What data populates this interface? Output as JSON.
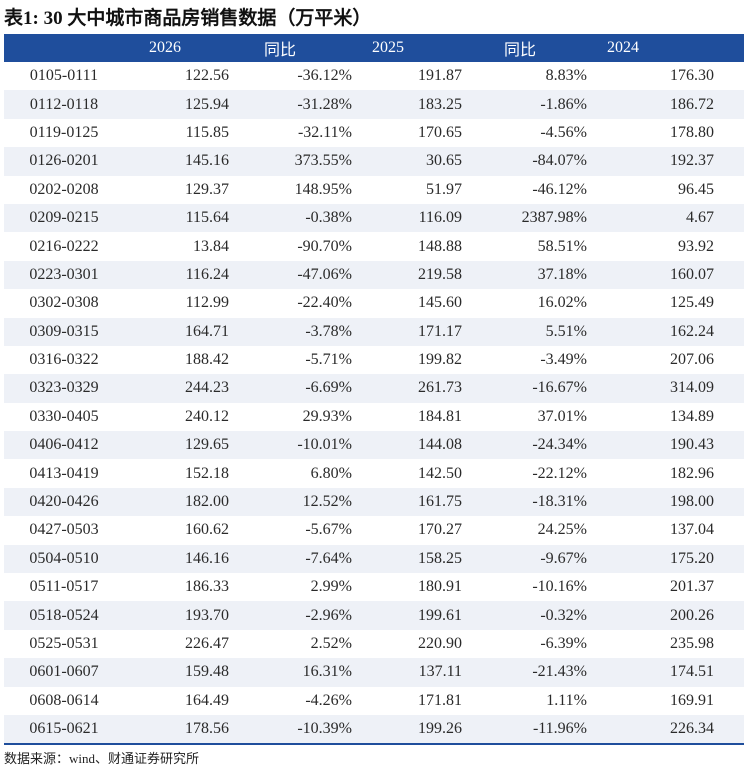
{
  "title": "表1: 30 大中城市商品房销售数据（万平米）",
  "columns": [
    "",
    "2026",
    "同比",
    "2025",
    "同比",
    "2024"
  ],
  "rows": [
    [
      "0105-0111",
      "122.56",
      "-36.12%",
      "191.87",
      "8.83%",
      "176.30"
    ],
    [
      "0112-0118",
      "125.94",
      "-31.28%",
      "183.25",
      "-1.86%",
      "186.72"
    ],
    [
      "0119-0125",
      "115.85",
      "-32.11%",
      "170.65",
      "-4.56%",
      "178.80"
    ],
    [
      "0126-0201",
      "145.16",
      "373.55%",
      "30.65",
      "-84.07%",
      "192.37"
    ],
    [
      "0202-0208",
      "129.37",
      "148.95%",
      "51.97",
      "-46.12%",
      "96.45"
    ],
    [
      "0209-0215",
      "115.64",
      "-0.38%",
      "116.09",
      "2387.98%",
      "4.67"
    ],
    [
      "0216-0222",
      "13.84",
      "-90.70%",
      "148.88",
      "58.51%",
      "93.92"
    ],
    [
      "0223-0301",
      "116.24",
      "-47.06%",
      "219.58",
      "37.18%",
      "160.07"
    ],
    [
      "0302-0308",
      "112.99",
      "-22.40%",
      "145.60",
      "16.02%",
      "125.49"
    ],
    [
      "0309-0315",
      "164.71",
      "-3.78%",
      "171.17",
      "5.51%",
      "162.24"
    ],
    [
      "0316-0322",
      "188.42",
      "-5.71%",
      "199.82",
      "-3.49%",
      "207.06"
    ],
    [
      "0323-0329",
      "244.23",
      "-6.69%",
      "261.73",
      "-16.67%",
      "314.09"
    ],
    [
      "0330-0405",
      "240.12",
      "29.93%",
      "184.81",
      "37.01%",
      "134.89"
    ],
    [
      "0406-0412",
      "129.65",
      "-10.01%",
      "144.08",
      "-24.34%",
      "190.43"
    ],
    [
      "0413-0419",
      "152.18",
      "6.80%",
      "142.50",
      "-22.12%",
      "182.96"
    ],
    [
      "0420-0426",
      "182.00",
      "12.52%",
      "161.75",
      "-18.31%",
      "198.00"
    ],
    [
      "0427-0503",
      "160.62",
      "-5.67%",
      "170.27",
      "24.25%",
      "137.04"
    ],
    [
      "0504-0510",
      "146.16",
      "-7.64%",
      "158.25",
      "-9.67%",
      "175.20"
    ],
    [
      "0511-0517",
      "186.33",
      "2.99%",
      "180.91",
      "-10.16%",
      "201.37"
    ],
    [
      "0518-0524",
      "193.70",
      "-2.96%",
      "199.61",
      "-0.32%",
      "200.26"
    ],
    [
      "0525-0531",
      "226.47",
      "2.52%",
      "220.90",
      "-6.39%",
      "235.98"
    ],
    [
      "0601-0607",
      "159.48",
      "16.31%",
      "137.11",
      "-21.43%",
      "174.51"
    ],
    [
      "0608-0614",
      "164.49",
      "-4.26%",
      "171.81",
      "1.11%",
      "169.91"
    ],
    [
      "0615-0621",
      "178.56",
      "-10.39%",
      "199.26",
      "-11.96%",
      "226.34"
    ]
  ],
  "source": "数据来源：wind、财通证券研究所",
  "colors": {
    "header_bg": "#1f4e9c",
    "stripe_bg": "#eef1f7"
  }
}
